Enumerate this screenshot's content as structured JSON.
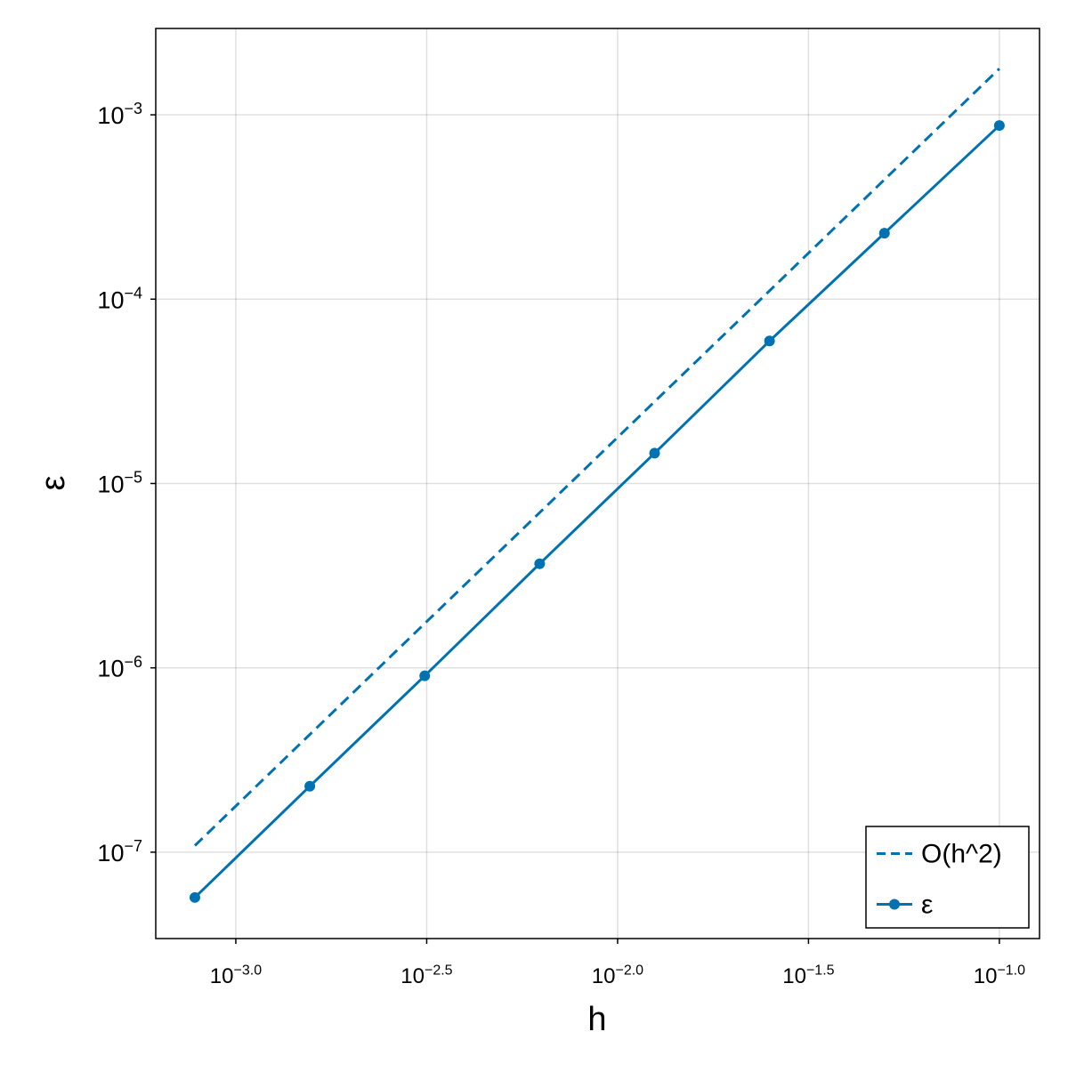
{
  "chart_data": {
    "type": "line",
    "xlabel": "h",
    "ylabel": "ε",
    "xscale": "log",
    "yscale": "log",
    "xlim": [
      0.000617,
      0.1274
    ],
    "ylim": [
      3.4e-08,
      0.00294
    ],
    "xticks": [
      {
        "value": 0.001,
        "label": "10^−3.0"
      },
      {
        "value": 0.0031623,
        "label": "10^−2.5"
      },
      {
        "value": 0.01,
        "label": "10^−2.0"
      },
      {
        "value": 0.031623,
        "label": "10^−1.5"
      },
      {
        "value": 0.1,
        "label": "10^−1.0"
      }
    ],
    "yticks": [
      {
        "value": 1e-07,
        "label": "10^−7"
      },
      {
        "value": 1e-06,
        "label": "10^−6"
      },
      {
        "value": 1e-05,
        "label": "10^−5"
      },
      {
        "value": 0.0001,
        "label": "10^−4"
      },
      {
        "value": 0.001,
        "label": "10^−3"
      }
    ],
    "grid": true,
    "legend_position": "bottom right",
    "x": [
      0.00078125,
      0.0015625,
      0.003125,
      0.00625,
      0.0125,
      0.025,
      0.05,
      0.1
    ],
    "series": [
      {
        "name": "O(h^2)",
        "color": "#0072b2",
        "linestyle": "dashed",
        "marker": false,
        "values": [
          1.086e-07,
          4.35e-07,
          1.74e-06,
          6.95e-06,
          2.78e-05,
          0.000111,
          0.000445,
          0.00178
        ]
      },
      {
        "name": "ε",
        "color": "#0072b2",
        "linestyle": "solid",
        "marker": true,
        "values": [
          5.68e-08,
          2.28e-07,
          9.05e-07,
          3.67e-06,
          1.46e-05,
          5.93e-05,
          0.000228,
          0.000875
        ]
      }
    ]
  }
}
